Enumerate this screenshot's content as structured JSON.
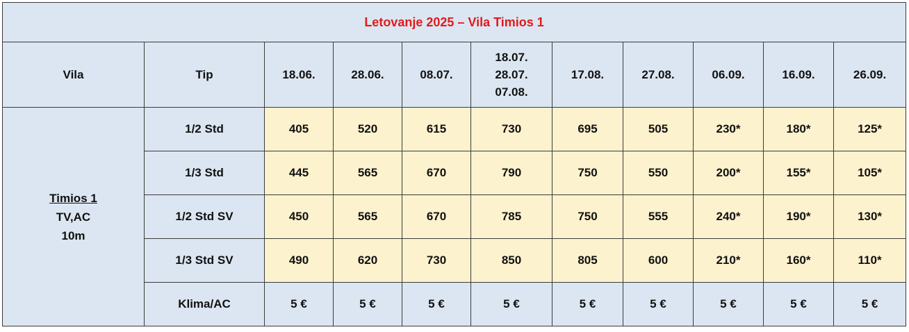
{
  "title": "Letovanje 2025 – Vila Timios 1",
  "headers": {
    "vila": "Vila",
    "tip": "Tip",
    "dates": [
      "18.06.",
      "28.06.",
      "08.07.",
      "18.07.",
      "17.08.",
      "27.08.",
      "06.09.",
      "16.09.",
      "26.09."
    ],
    "date_group_extra": [
      "28.07.",
      "07.08."
    ]
  },
  "villa": {
    "name": "Timios 1",
    "amenities": "TV,AC",
    "distance": "10m"
  },
  "rows": [
    {
      "type": "1/2 Std",
      "prices": [
        "405",
        "520",
        "615",
        "730",
        "695",
        "505",
        "230*",
        "180*",
        "125*"
      ]
    },
    {
      "type": "1/3 Std",
      "prices": [
        "445",
        "565",
        "670",
        "790",
        "750",
        "550",
        "200*",
        "155*",
        "105*"
      ]
    },
    {
      "type": "1/2 Std SV",
      "prices": [
        "450",
        "565",
        "670",
        "785",
        "750",
        "555",
        "240*",
        "190*",
        "130*"
      ]
    },
    {
      "type": "1/3 Std SV",
      "prices": [
        "490",
        "620",
        "730",
        "850",
        "805",
        "600",
        "210*",
        "160*",
        "110*"
      ]
    }
  ],
  "klima_row": {
    "label": "Klima/AC",
    "prices": [
      "5 €",
      "5 €",
      "5 €",
      "5 €",
      "5 €",
      "5 €",
      "5 €",
      "5 €",
      "5 €"
    ]
  },
  "colors": {
    "header_bg": "#dce6f2",
    "price_bg": "#fdf2ce",
    "title_text": "#e01b1b",
    "border": "#3a3a3a"
  }
}
